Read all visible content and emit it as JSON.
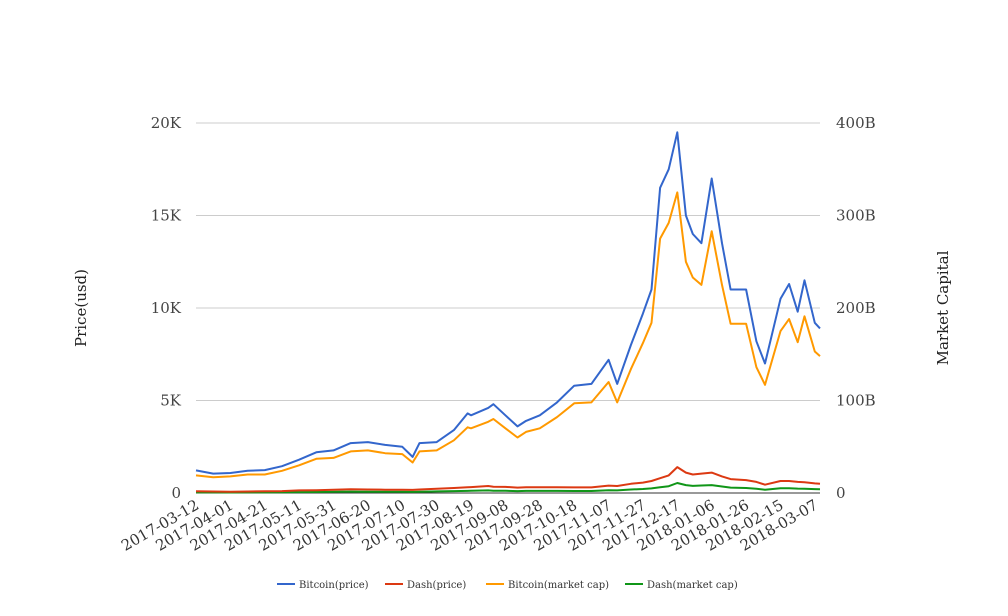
{
  "chart_data": {
    "type": "line",
    "title": "",
    "ylabel": "Price(usd)",
    "y2label": "Market Capital",
    "ylim": [
      0,
      20000
    ],
    "y2lim": [
      0,
      400
    ],
    "y_ticks": [
      "0",
      "5K",
      "10K",
      "15K",
      "20K"
    ],
    "y2_ticks": [
      "0",
      "100B",
      "200B",
      "300B",
      "400B"
    ],
    "grid": true,
    "legend_position": "bottom",
    "x_ticks": [
      "2017-03-12",
      "2017-04-01",
      "2017-04-21",
      "2017-05-11",
      "2017-05-31",
      "2017-06-20",
      "2017-07-10",
      "2017-07-30",
      "2017-08-19",
      "2017-09-08",
      "2017-09-28",
      "2017-10-18",
      "2017-11-07",
      "2017-11-27",
      "2017-12-17",
      "2018-01-06",
      "2018-01-26",
      "2018-02-15",
      "2018-03-07"
    ],
    "x_range": [
      "2017-03-12",
      "2018-03-10"
    ],
    "x": [
      "2017-03-12",
      "2017-03-22",
      "2017-04-01",
      "2017-04-11",
      "2017-04-21",
      "2017-05-01",
      "2017-05-11",
      "2017-05-21",
      "2017-05-31",
      "2017-06-10",
      "2017-06-20",
      "2017-06-30",
      "2017-07-10",
      "2017-07-16",
      "2017-07-20",
      "2017-07-30",
      "2017-08-09",
      "2017-08-17",
      "2017-08-19",
      "2017-08-29",
      "2017-09-01",
      "2017-09-08",
      "2017-09-15",
      "2017-09-20",
      "2017-09-28",
      "2017-10-08",
      "2017-10-18",
      "2017-10-28",
      "2017-11-07",
      "2017-11-12",
      "2017-11-20",
      "2017-11-27",
      "2017-12-02",
      "2017-12-07",
      "2017-12-12",
      "2017-12-17",
      "2017-12-22",
      "2017-12-26",
      "2017-12-31",
      "2018-01-06",
      "2018-01-12",
      "2018-01-17",
      "2018-01-26",
      "2018-02-01",
      "2018-02-06",
      "2018-02-15",
      "2018-02-20",
      "2018-02-25",
      "2018-03-01",
      "2018-03-07",
      "2018-03-10"
    ],
    "series": [
      {
        "name": "Bitcoin(price)",
        "axis": "left",
        "color": "#3366cc",
        "values": [
          1220,
          1050,
          1080,
          1200,
          1240,
          1450,
          1800,
          2200,
          2300,
          2700,
          2750,
          2600,
          2500,
          1950,
          2700,
          2750,
          3400,
          4300,
          4200,
          4600,
          4800,
          4200,
          3600,
          3900,
          4200,
          4900,
          5800,
          5900,
          7200,
          5900,
          8000,
          9700,
          11000,
          16500,
          17500,
          19500,
          15000,
          14000,
          13500,
          17000,
          13500,
          11000,
          11000,
          8200,
          7000,
          10500,
          11300,
          9800,
          11500,
          9200,
          8900
        ]
      },
      {
        "name": "Dash(price)",
        "axis": "left",
        "color": "#dc3912",
        "values": [
          90,
          80,
          70,
          80,
          90,
          100,
          140,
          150,
          180,
          200,
          190,
          180,
          180,
          170,
          190,
          230,
          270,
          310,
          320,
          380,
          340,
          330,
          290,
          310,
          310,
          310,
          300,
          300,
          400,
          380,
          500,
          560,
          650,
          800,
          950,
          1400,
          1100,
          1000,
          1050,
          1100,
          900,
          750,
          700,
          600,
          450,
          650,
          650,
          600,
          580,
          520,
          500
        ]
      },
      {
        "name": "Bitcoin(market cap)",
        "axis": "right",
        "color": "#ff9900",
        "values": [
          19,
          17,
          18,
          20,
          20,
          24,
          30,
          37,
          38,
          45,
          46,
          43,
          42,
          33,
          45,
          46,
          57,
          71,
          70,
          77,
          80,
          70,
          60,
          66,
          70,
          82,
          97,
          98,
          120,
          98,
          134,
          162,
          184,
          275,
          292,
          325,
          250,
          233,
          225,
          283,
          225,
          183,
          183,
          136,
          117,
          175,
          188,
          163,
          191,
          153,
          148
        ]
      },
      {
        "name": "Dash(market cap)",
        "axis": "right",
        "color": "#109618",
        "values": [
          0.7,
          0.6,
          0.5,
          0.6,
          0.7,
          0.8,
          1.0,
          1.1,
          1.3,
          1.5,
          1.4,
          1.3,
          1.3,
          1.2,
          1.4,
          1.7,
          2.0,
          2.3,
          2.4,
          2.8,
          2.5,
          2.4,
          2.1,
          2.3,
          2.3,
          2.3,
          2.2,
          2.2,
          3.0,
          2.8,
          3.8,
          4.3,
          5.0,
          6.2,
          7.3,
          10.8,
          8.5,
          7.7,
          8.1,
          8.5,
          7.0,
          5.8,
          5.4,
          4.7,
          3.5,
          5.1,
          5.2,
          4.8,
          4.6,
          4.2,
          4.0
        ]
      }
    ]
  }
}
